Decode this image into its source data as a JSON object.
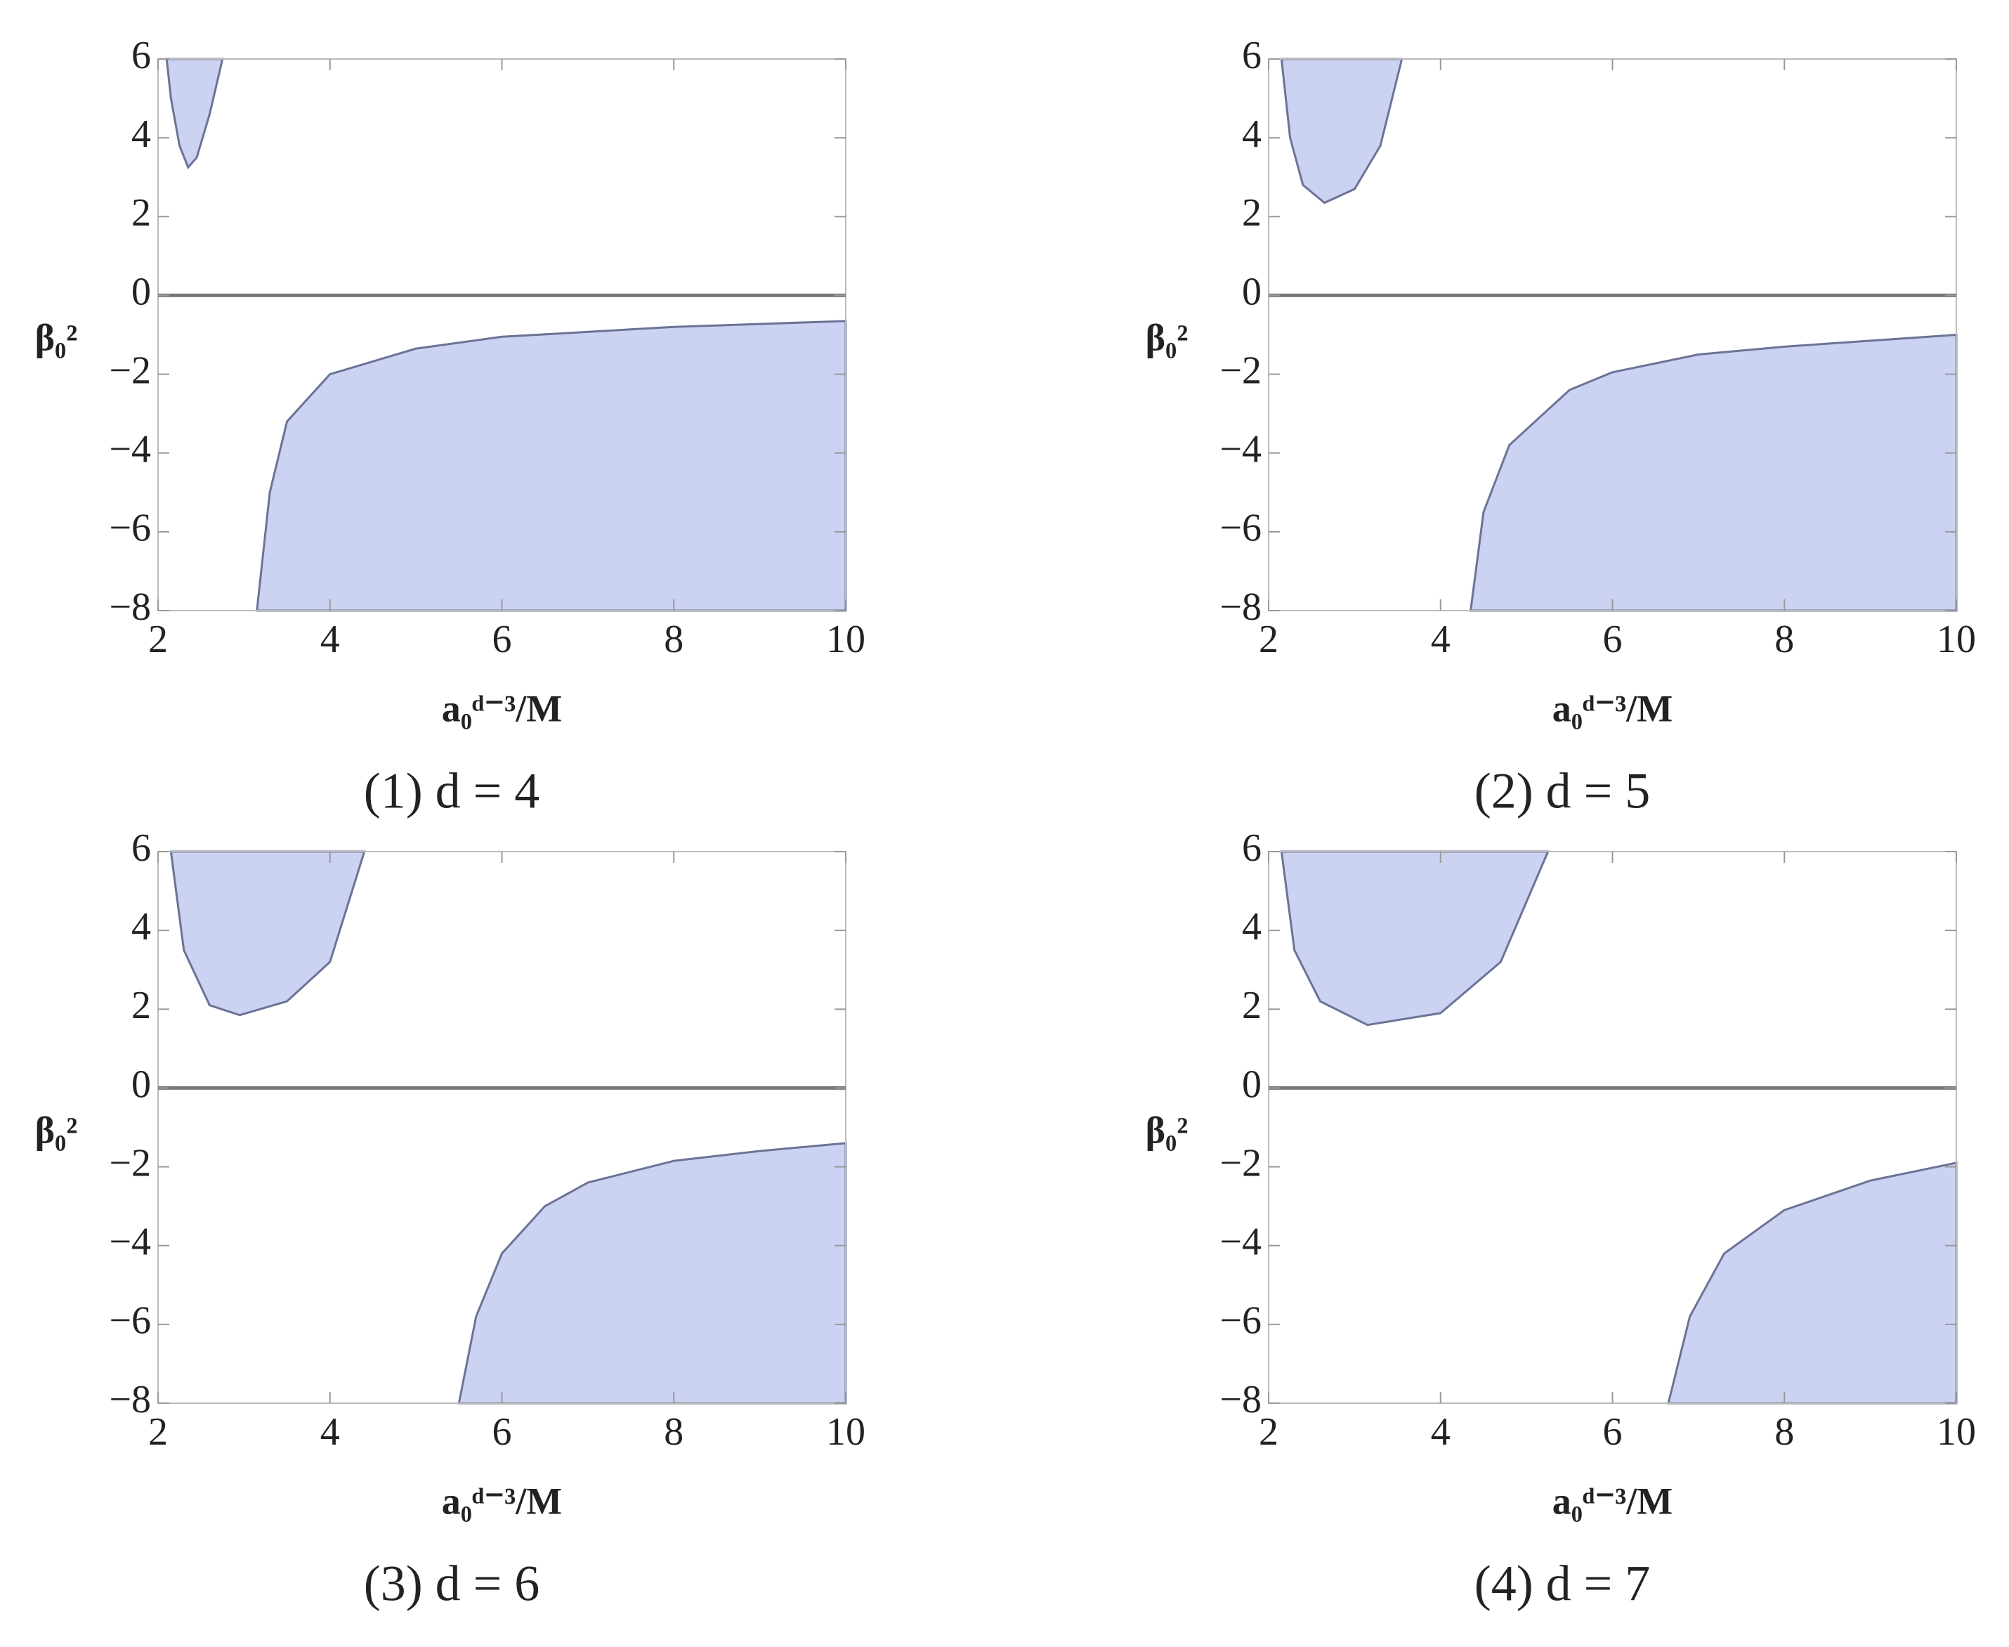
{
  "chart_data": [
    {
      "type": "area",
      "caption": "(1) d = 4",
      "xlabel": "a₀ᵈ⁻³/M",
      "ylabel": "β₀²",
      "xlim": [
        2,
        10
      ],
      "ylim": [
        -8,
        6
      ],
      "xticks": [
        2,
        4,
        6,
        8,
        10
      ],
      "yticks": [
        {
          "value": -8,
          "label": "−8"
        },
        {
          "value": -6,
          "label": "−6"
        },
        {
          "value": -4,
          "label": "−4"
        },
        {
          "value": -2,
          "label": "−2"
        },
        0,
        2,
        4,
        6
      ],
      "series": [
        {
          "color": "#ccd2f2",
          "x": [
            2.1,
            2.15,
            2.25,
            2.35,
            2.45,
            2.6,
            2.75
          ],
          "values": [
            6,
            5,
            3.8,
            3.25,
            3.5,
            4.6,
            6
          ]
        },
        {
          "color": "#ccd2f2",
          "x": [
            3.15,
            3.3,
            3.5,
            4,
            5,
            6,
            8,
            10,
            10
          ],
          "values": [
            -8,
            -5,
            -3.2,
            -2,
            -1.35,
            -1.05,
            -0.8,
            -0.65,
            -8
          ]
        }
      ]
    },
    {
      "type": "area",
      "caption": "(2) d = 5",
      "xlabel": "a₀ᵈ⁻³/M",
      "ylabel": "β₀²",
      "xlim": [
        2,
        10
      ],
      "ylim": [
        -8,
        6
      ],
      "xticks": [
        2,
        4,
        6,
        8,
        10
      ],
      "yticks": [
        {
          "value": -8,
          "label": "−8"
        },
        {
          "value": -6,
          "label": "−6"
        },
        {
          "value": -4,
          "label": "−4"
        },
        {
          "value": -2,
          "label": "−2"
        },
        0,
        2,
        4,
        6
      ],
      "series": [
        {
          "color": "#ccd2f2",
          "x": [
            2.15,
            2.25,
            2.4,
            2.65,
            3,
            3.3,
            3.55
          ],
          "values": [
            6,
            4,
            2.8,
            2.35,
            2.7,
            3.8,
            6
          ]
        },
        {
          "color": "#ccd2f2",
          "x": [
            4.35,
            4.5,
            4.8,
            5.5,
            6,
            7,
            8,
            10,
            10
          ],
          "values": [
            -8,
            -5.5,
            -3.8,
            -2.4,
            -1.95,
            -1.5,
            -1.3,
            -1,
            -8
          ]
        }
      ]
    },
    {
      "type": "area",
      "caption": "(3) d = 6",
      "xlabel": "a₀ᵈ⁻³/M",
      "ylabel": "β₀²",
      "xlim": [
        2,
        10
      ],
      "ylim": [
        -8,
        6
      ],
      "xticks": [
        2,
        4,
        6,
        8,
        10
      ],
      "yticks": [
        {
          "value": -8,
          "label": "−8"
        },
        {
          "value": -6,
          "label": "−6"
        },
        {
          "value": -4,
          "label": "−4"
        },
        {
          "value": -2,
          "label": "−2"
        },
        0,
        2,
        4,
        6
      ],
      "series": [
        {
          "color": "#ccd2f2",
          "x": [
            2.15,
            2.3,
            2.6,
            2.95,
            3.5,
            4,
            4.4
          ],
          "values": [
            6,
            3.5,
            2.1,
            1.85,
            2.2,
            3.2,
            6
          ]
        },
        {
          "color": "#ccd2f2",
          "x": [
            5.5,
            5.7,
            6,
            6.5,
            7,
            8,
            9,
            10,
            10
          ],
          "values": [
            -8,
            -5.8,
            -4.2,
            -3,
            -2.4,
            -1.85,
            -1.6,
            -1.4,
            -8
          ]
        }
      ]
    },
    {
      "type": "area",
      "caption": "(4) d = 7",
      "xlabel": "a₀ᵈ⁻³/M",
      "ylabel": "β₀²",
      "xlim": [
        2,
        10
      ],
      "ylim": [
        -8,
        6
      ],
      "xticks": [
        2,
        4,
        6,
        8,
        10
      ],
      "yticks": [
        {
          "value": -8,
          "label": "−8"
        },
        {
          "value": -6,
          "label": "−6"
        },
        {
          "value": -4,
          "label": "−4"
        },
        {
          "value": -2,
          "label": "−2"
        },
        0,
        2,
        4,
        6
      ],
      "series": [
        {
          "color": "#ccd2f2",
          "x": [
            2.15,
            2.3,
            2.6,
            3.15,
            4,
            4.7,
            5.25
          ],
          "values": [
            6,
            3.5,
            2.2,
            1.6,
            1.9,
            3.2,
            6
          ]
        },
        {
          "color": "#ccd2f2",
          "x": [
            6.65,
            6.9,
            7.3,
            8,
            9,
            10,
            10
          ],
          "values": [
            -8,
            -5.8,
            -4.2,
            -3.1,
            -2.35,
            -1.9,
            -8
          ]
        }
      ]
    }
  ]
}
